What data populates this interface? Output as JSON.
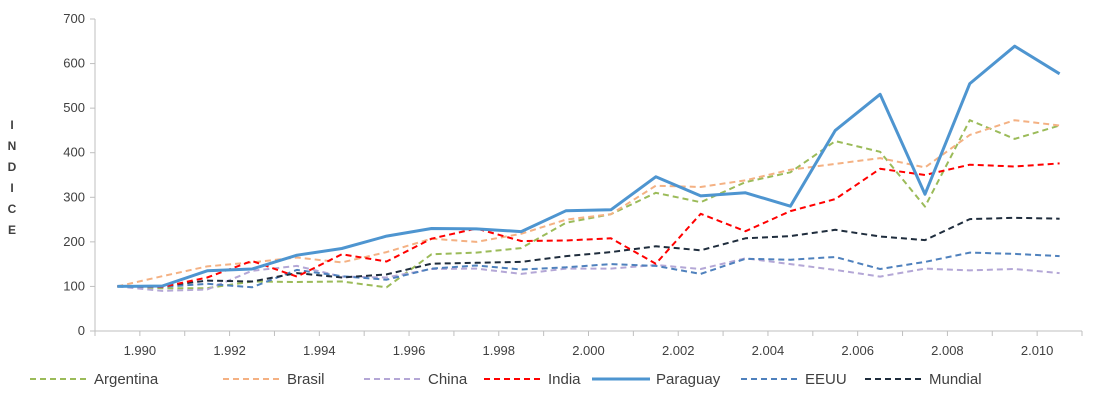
{
  "chart_data": {
    "type": "line",
    "title": "",
    "xlabel": "",
    "ylabel": "INDICE",
    "ylim": [
      0,
      700
    ],
    "yticks": [
      "0",
      "100",
      "200",
      "300",
      "400",
      "500",
      "600",
      "700"
    ],
    "xticks": [
      "1.990",
      "1.992",
      "1.994",
      "1.996",
      "1.998",
      "2.000",
      "2.002",
      "2.004",
      "2.006",
      "2.008",
      "2.010"
    ],
    "grid": false,
    "legend": "bottom",
    "x": [
      1989.5,
      1990.5,
      1991.5,
      1992.5,
      1993.5,
      1994.5,
      1995.5,
      1996.5,
      1997.5,
      1998.5,
      1999.5,
      2000.5,
      2001.5,
      2002.5,
      2003.5,
      2004.5,
      2005.5,
      2006.5,
      2007.5,
      2008.5,
      2009.5,
      2010.5
    ],
    "series": [
      {
        "name": "Argentina",
        "color": "#9bbb59",
        "style": "dashed",
        "width": 2,
        "values": [
          100,
          96,
          96,
          111,
          110,
          111,
          98,
          172,
          176,
          186,
          243,
          262,
          310,
          289,
          334,
          356,
          426,
          402,
          279,
          473,
          431,
          461
        ]
      },
      {
        "name": "Brasil",
        "color": "#f4b183",
        "style": "dashed",
        "width": 2,
        "values": [
          100,
          123,
          145,
          154,
          165,
          154,
          177,
          207,
          200,
          218,
          250,
          262,
          326,
          323,
          338,
          362,
          375,
          388,
          367,
          440,
          473,
          461
        ]
      },
      {
        "name": "China",
        "color": "#b4a7d6",
        "style": "dashed",
        "width": 2,
        "values": [
          100,
          90,
          93,
          135,
          146,
          122,
          120,
          139,
          140,
          128,
          140,
          140,
          148,
          139,
          163,
          150,
          137,
          122,
          140,
          136,
          139,
          130
        ]
      },
      {
        "name": "India",
        "color": "#ff0000",
        "style": "dashed",
        "width": 2,
        "values": [
          100,
          99,
          120,
          157,
          122,
          172,
          156,
          207,
          230,
          202,
          203,
          208,
          151,
          263,
          224,
          269,
          296,
          364,
          350,
          373,
          369,
          376
        ]
      },
      {
        "name": "Paraguay",
        "color": "#4e95d0",
        "style": "solid",
        "width": 3,
        "values": [
          100,
          101,
          135,
          139,
          170,
          185,
          213,
          230,
          229,
          223,
          270,
          272,
          346,
          303,
          310,
          280,
          450,
          531,
          307,
          555,
          639,
          577
        ]
      },
      {
        "name": "EEUU",
        "color": "#4f81bd",
        "style": "dashed",
        "width": 2,
        "values": [
          100,
          99,
          106,
          98,
          137,
          123,
          115,
          140,
          147,
          138,
          143,
          150,
          146,
          128,
          162,
          160,
          166,
          139,
          155,
          176,
          173,
          168
        ]
      },
      {
        "name": "Mundial",
        "color": "#1f2d3d",
        "style": "dashed",
        "width": 2,
        "values": [
          100,
          101,
          113,
          111,
          130,
          120,
          127,
          151,
          153,
          155,
          168,
          177,
          190,
          181,
          208,
          213,
          227,
          212,
          204,
          251,
          254,
          252
        ]
      }
    ]
  }
}
